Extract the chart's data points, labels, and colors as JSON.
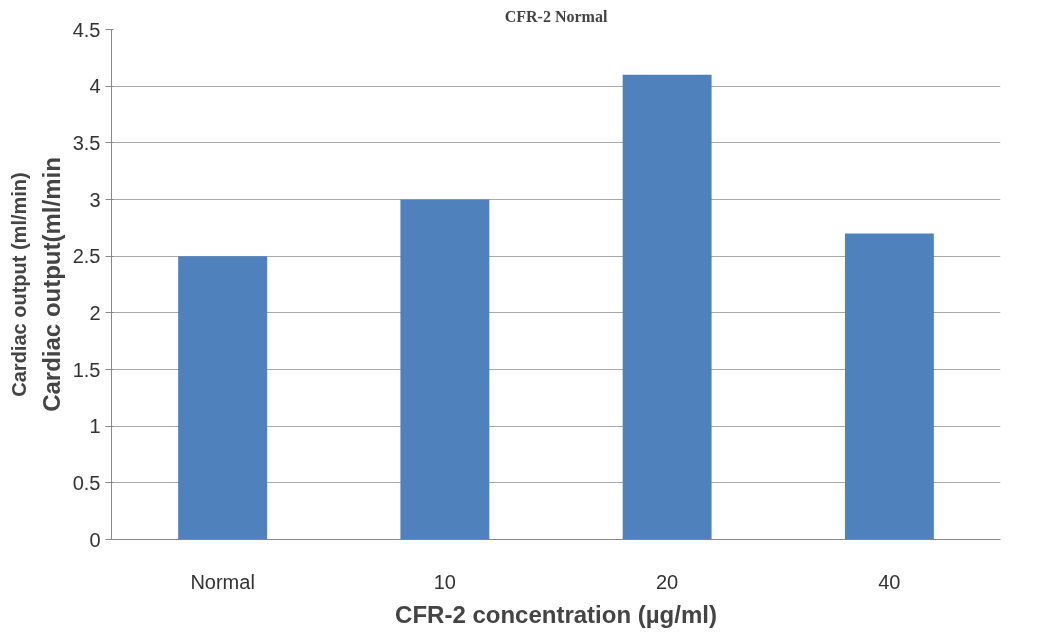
{
  "chart_data": {
    "type": "bar",
    "title": "CFR-2 Normal",
    "categories": [
      "Normal",
      "10",
      "20",
      "40"
    ],
    "values": [
      2.5,
      3.0,
      4.1,
      2.7
    ],
    "color": "#4f81bd",
    "xlabel": "CFR-2 concentration (µg/ml)",
    "ylabel": "Cardiac output(ml/min",
    "annotations": [
      "Cardiac output (ml/min)"
    ],
    "ylim": [
      0,
      4.5
    ],
    "yticks": [
      0,
      0.5,
      1,
      1.5,
      2,
      2.5,
      3,
      3.5,
      4,
      4.5
    ],
    "grid": "y"
  }
}
